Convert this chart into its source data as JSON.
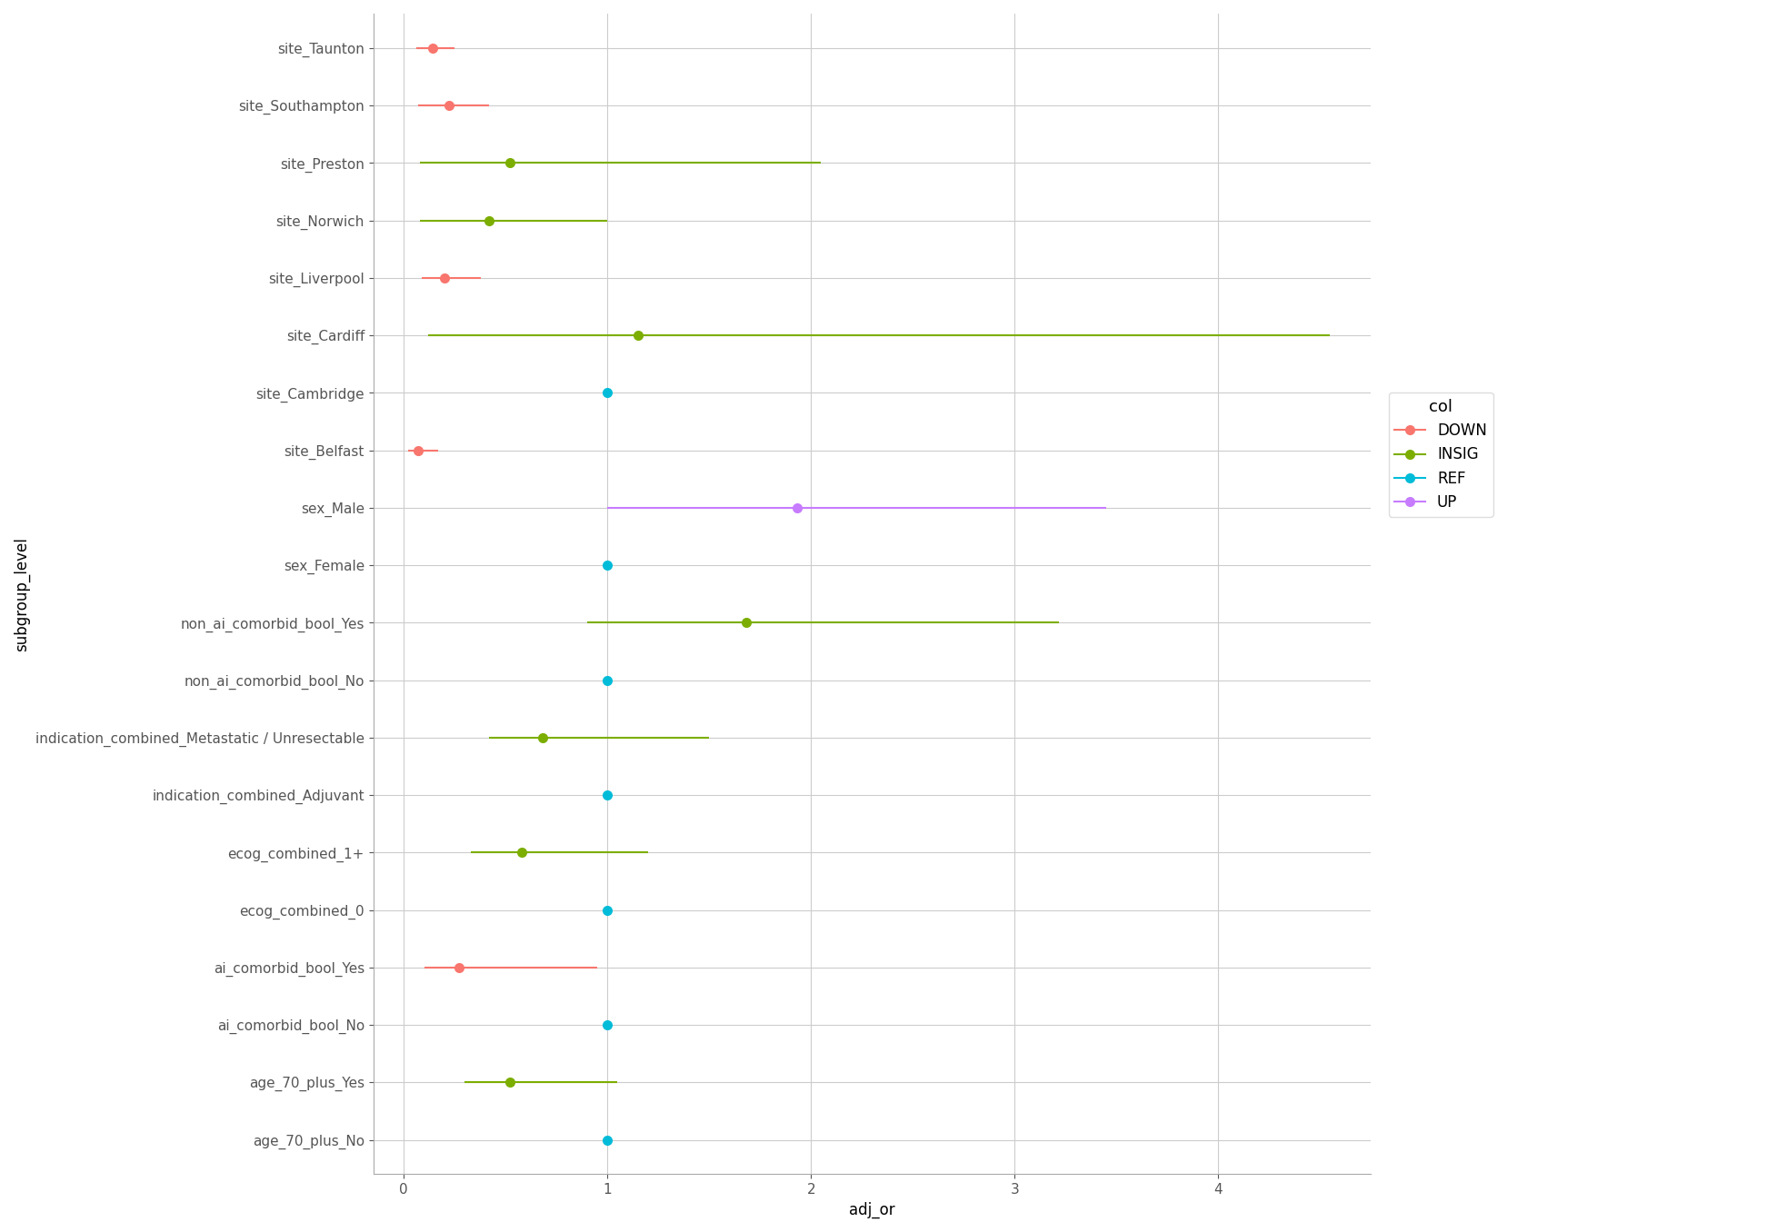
{
  "title": "",
  "xlabel": "adj_or",
  "ylabel": "subgroup_level",
  "background_color": "#ffffff",
  "grid_color": "#cccccc",
  "rows": [
    {
      "label": "site_Taunton",
      "est": 0.14,
      "lo": 0.06,
      "hi": 0.25,
      "col": "DOWN"
    },
    {
      "label": "site_Southampton",
      "est": 0.22,
      "lo": 0.07,
      "hi": 0.42,
      "col": "DOWN"
    },
    {
      "label": "site_Preston",
      "est": 0.52,
      "lo": 0.08,
      "hi": 2.05,
      "col": "INSIG"
    },
    {
      "label": "site_Norwich",
      "est": 0.42,
      "lo": 0.08,
      "hi": 1.0,
      "col": "INSIG"
    },
    {
      "label": "site_Liverpool",
      "est": 0.2,
      "lo": 0.09,
      "hi": 0.38,
      "col": "DOWN"
    },
    {
      "label": "site_Cardiff",
      "est": 1.15,
      "lo": 0.12,
      "hi": 4.55,
      "col": "INSIG"
    },
    {
      "label": "site_Cambridge",
      "est": 1.0,
      "lo": 1.0,
      "hi": 1.0,
      "col": "REF"
    },
    {
      "label": "site_Belfast",
      "est": 0.07,
      "lo": 0.02,
      "hi": 0.17,
      "col": "DOWN"
    },
    {
      "label": "sex_Male",
      "est": 1.93,
      "lo": 1.0,
      "hi": 3.45,
      "col": "UP"
    },
    {
      "label": "sex_Female",
      "est": 1.0,
      "lo": 1.0,
      "hi": 1.0,
      "col": "REF"
    },
    {
      "label": "non_ai_comorbid_bool_Yes",
      "est": 1.68,
      "lo": 0.9,
      "hi": 3.22,
      "col": "INSIG"
    },
    {
      "label": "non_ai_comorbid_bool_No",
      "est": 1.0,
      "lo": 1.0,
      "hi": 1.0,
      "col": "REF"
    },
    {
      "label": "indication_combined_Metastatic / Unresectable",
      "est": 0.68,
      "lo": 0.42,
      "hi": 1.5,
      "col": "INSIG"
    },
    {
      "label": "indication_combined_Adjuvant",
      "est": 1.0,
      "lo": 1.0,
      "hi": 1.0,
      "col": "REF"
    },
    {
      "label": "ecog_combined_1+",
      "est": 0.58,
      "lo": 0.33,
      "hi": 1.2,
      "col": "INSIG"
    },
    {
      "label": "ecog_combined_0",
      "est": 1.0,
      "lo": 1.0,
      "hi": 1.0,
      "col": "REF"
    },
    {
      "label": "ai_comorbid_bool_Yes",
      "est": 0.27,
      "lo": 0.1,
      "hi": 0.95,
      "col": "DOWN"
    },
    {
      "label": "ai_comorbid_bool_No",
      "est": 1.0,
      "lo": 1.0,
      "hi": 1.0,
      "col": "REF"
    },
    {
      "label": "age_70_plus_Yes",
      "est": 0.52,
      "lo": 0.3,
      "hi": 1.05,
      "col": "INSIG"
    },
    {
      "label": "age_70_plus_No",
      "est": 1.0,
      "lo": 1.0,
      "hi": 1.0,
      "col": "REF"
    }
  ],
  "colors": {
    "DOWN": "#f8766d",
    "INSIG": "#7cae00",
    "REF": "#00bcd8",
    "UP": "#c77cff"
  },
  "legend_order": [
    "DOWN",
    "INSIG",
    "REF",
    "UP"
  ],
  "xlim": [
    -0.15,
    4.75
  ],
  "xticks": [
    0,
    1,
    2,
    3,
    4
  ],
  "fontsize_labels": 11,
  "fontsize_axis": 12,
  "fontsize_legend_title": 13,
  "marker_size": 8,
  "capsize": 3,
  "linewidth": 1.5
}
